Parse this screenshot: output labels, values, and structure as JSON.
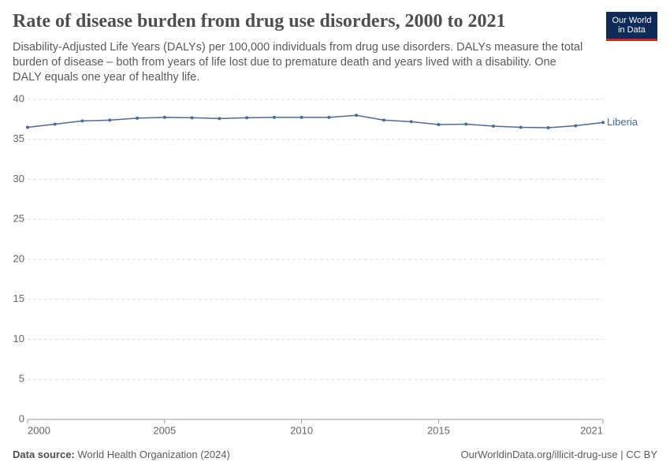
{
  "chart_data": {
    "type": "line",
    "title": "Rate of disease burden from drug use disorders, 2000 to 2021",
    "subtitle": "Disability-Adjusted Life Years (DALYs) per 100,000 individuals from drug use disorders. DALYs measure the total burden of disease – both from years of life lost due to premature death and years lived with a disability. One DALY equals one year of healthy life.",
    "logo": [
      "Our World",
      "in Data"
    ],
    "source_label": "Data source:",
    "source": "World Health Organization (2024)",
    "footer_right": "OurWorldinData.org/illicit-drug-use | CC BY",
    "x": [
      2000,
      2001,
      2002,
      2003,
      2004,
      2005,
      2006,
      2007,
      2008,
      2009,
      2010,
      2011,
      2012,
      2013,
      2014,
      2015,
      2016,
      2017,
      2018,
      2019,
      2020,
      2021
    ],
    "series": [
      {
        "name": "Liberia",
        "color": "#4c6a9c",
        "values": [
          36.5,
          36.9,
          37.3,
          37.4,
          37.65,
          37.75,
          37.7,
          37.6,
          37.7,
          37.75,
          37.75,
          37.75,
          38.0,
          37.4,
          37.2,
          36.85,
          36.9,
          36.65,
          36.5,
          36.45,
          36.7,
          37.1
        ]
      }
    ],
    "xlim": [
      2000,
      2021
    ],
    "xticks": [
      2000,
      2005,
      2010,
      2015,
      2021
    ],
    "ylim": [
      0,
      40
    ],
    "yticks": [
      0,
      5,
      10,
      15,
      20,
      25,
      30,
      35,
      40
    ],
    "grid": true
  }
}
